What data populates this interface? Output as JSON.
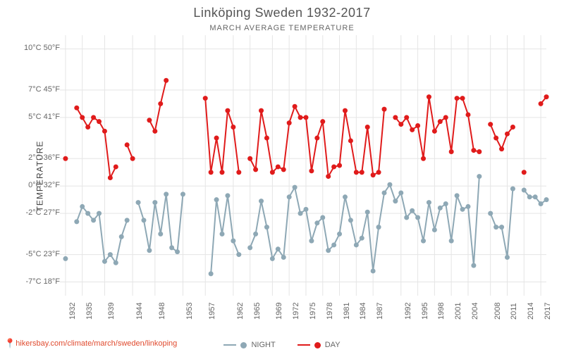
{
  "title": "Linköping Sweden 1932-2017",
  "subtitle": "MARCH AVERAGE TEMPERATURE",
  "ylabel": "TEMPERATURE",
  "attribution_url": "hikersbay.com/climate/march/sweden/linkoping",
  "chart": {
    "type": "line",
    "background_color": "#ffffff",
    "grid_color": "#e5e5e5",
    "title_fontsize": 18,
    "subtitle_fontsize": 11,
    "label_fontsize": 12,
    "tick_fontsize": 11,
    "line_width": 2,
    "marker_size": 3.5,
    "ylim_c": [
      -8,
      11
    ],
    "yticks_c": [
      -7,
      -5,
      -2,
      0,
      2,
      5,
      7,
      10
    ],
    "yticks_f": [
      18,
      23,
      27,
      32,
      36,
      41,
      45,
      50
    ],
    "xlim": [
      1931,
      2018
    ],
    "xticks": [
      1932,
      1935,
      1939,
      1944,
      1948,
      1953,
      1957,
      1962,
      1965,
      1969,
      1972,
      1975,
      1978,
      1981,
      1984,
      1987,
      1992,
      1995,
      1998,
      2001,
      2004,
      2008,
      2011,
      2014,
      2017
    ],
    "series": {
      "night": {
        "label": "NIGHT",
        "color": "#8ea8b5",
        "segments": [
          {
            "years": [
              1932
            ],
            "values": [
              -5.3
            ]
          },
          {
            "years": [
              1934,
              1935,
              1936,
              1937,
              1938,
              1939,
              1940,
              1941,
              1942,
              1943
            ],
            "values": [
              -2.6,
              -1.5,
              -2.0,
              -2.5,
              -2.0,
              -5.5,
              -5.0,
              -5.6,
              -3.7,
              -2.5
            ]
          },
          {
            "years": [
              1945,
              1946,
              1947,
              1948,
              1949,
              1950,
              1951,
              1952,
              1953
            ],
            "values": [
              -1.2,
              -2.5,
              -4.7,
              -1.2,
              -3.5,
              -0.6,
              -4.5,
              -4.8,
              -0.6
            ]
          },
          {
            "years": [
              1958,
              1959,
              1960,
              1961,
              1962,
              1963
            ],
            "values": [
              -6.4,
              -1.0,
              -3.5,
              -0.7,
              -4.0,
              -5.0
            ]
          },
          {
            "years": [
              1965,
              1966,
              1967,
              1968,
              1969,
              1970,
              1971,
              1972,
              1973,
              1974,
              1975,
              1976,
              1977,
              1978,
              1979,
              1980,
              1981,
              1982,
              1983,
              1984,
              1985,
              1986,
              1987,
              1988,
              1989,
              1990,
              1991,
              1992,
              1993,
              1994,
              1995,
              1996,
              1997,
              1998,
              1999,
              2000,
              2001,
              2002,
              2003,
              2004,
              2005,
              2006
            ],
            "values": [
              -4.5,
              -3.5,
              -1.1,
              -3.0,
              -5.3,
              -4.6,
              -5.2,
              -0.8,
              -0.1,
              -2.0,
              -1.7,
              -4.0,
              -2.7,
              -2.3,
              -4.7,
              -4.3,
              -3.5,
              -0.8,
              -2.5,
              -4.3,
              -3.8,
              -1.9,
              -6.2,
              -3.0,
              -0.5,
              0.1,
              -1.1,
              -0.5,
              -2.3,
              -1.8,
              -2.3,
              -4.0,
              -1.2,
              -3.2,
              -1.6,
              -1.3,
              -4.0,
              -0.7,
              -1.7,
              -1.5,
              -5.8,
              0.7
            ]
          },
          {
            "years": [
              2008,
              2009,
              2010,
              2011,
              2012
            ],
            "values": [
              -2.0,
              -3.0,
              -3.0,
              -5.2,
              -0.2
            ]
          },
          {
            "years": [
              2014,
              2015,
              2016,
              2017,
              2018
            ],
            "values": [
              -0.3,
              -0.8,
              -0.8,
              -1.3,
              -1.0
            ]
          }
        ]
      },
      "day": {
        "label": "DAY",
        "color": "#e01b1b",
        "segments": [
          {
            "years": [
              1932
            ],
            "values": [
              2.0
            ]
          },
          {
            "years": [
              1934,
              1935,
              1936,
              1937,
              1938,
              1939,
              1940,
              1941
            ],
            "values": [
              5.7,
              5.0,
              4.3,
              5.0,
              4.7,
              4.0,
              0.6,
              1.4
            ]
          },
          {
            "years": [
              1943,
              1944
            ],
            "values": [
              3.0,
              2.0
            ]
          },
          {
            "years": [
              1947,
              1948,
              1949,
              1950
            ],
            "values": [
              4.8,
              4.0,
              6.0,
              7.7
            ]
          },
          {
            "years": [
              1957,
              1958,
              1959,
              1960,
              1961,
              1962,
              1963
            ],
            "values": [
              6.4,
              1.0,
              3.5,
              1.0,
              5.5,
              4.3,
              1.0
            ]
          },
          {
            "years": [
              1965,
              1966,
              1967,
              1968,
              1969,
              1970,
              1971,
              1972,
              1973,
              1974,
              1975,
              1976,
              1977,
              1978,
              1979,
              1980,
              1981,
              1982,
              1983,
              1984,
              1985,
              1986,
              1987,
              1988,
              1989
            ],
            "values": [
              2.0,
              1.2,
              5.5,
              3.5,
              1.0,
              1.4,
              1.2,
              4.6,
              5.8,
              5.0,
              5.0,
              1.1,
              3.5,
              4.7,
              0.7,
              1.4,
              1.5,
              5.5,
              3.3,
              1.0,
              1.0,
              4.3,
              0.8,
              1.0,
              5.6
            ]
          },
          {
            "years": [
              1991,
              1992,
              1993,
              1994,
              1995,
              1996,
              1997,
              1998,
              1999,
              2000,
              2001,
              2002,
              2003,
              2004,
              2005,
              2006
            ],
            "values": [
              5.0,
              4.5,
              5.0,
              4.1,
              4.4,
              2.0,
              6.5,
              4.0,
              4.7,
              5.0,
              2.5,
              6.4,
              6.4,
              5.2,
              2.6,
              2.5
            ]
          },
          {
            "years": [
              2008,
              2009,
              2010,
              2011,
              2012
            ],
            "values": [
              4.5,
              3.5,
              2.7,
              3.8,
              4.3
            ]
          },
          {
            "years": [
              2014
            ],
            "values": [
              1.0
            ]
          },
          {
            "years": [
              2017,
              2018
            ],
            "values": [
              6.0,
              6.5
            ]
          }
        ]
      }
    }
  },
  "legend": {
    "night": "NIGHT",
    "day": "DAY"
  }
}
